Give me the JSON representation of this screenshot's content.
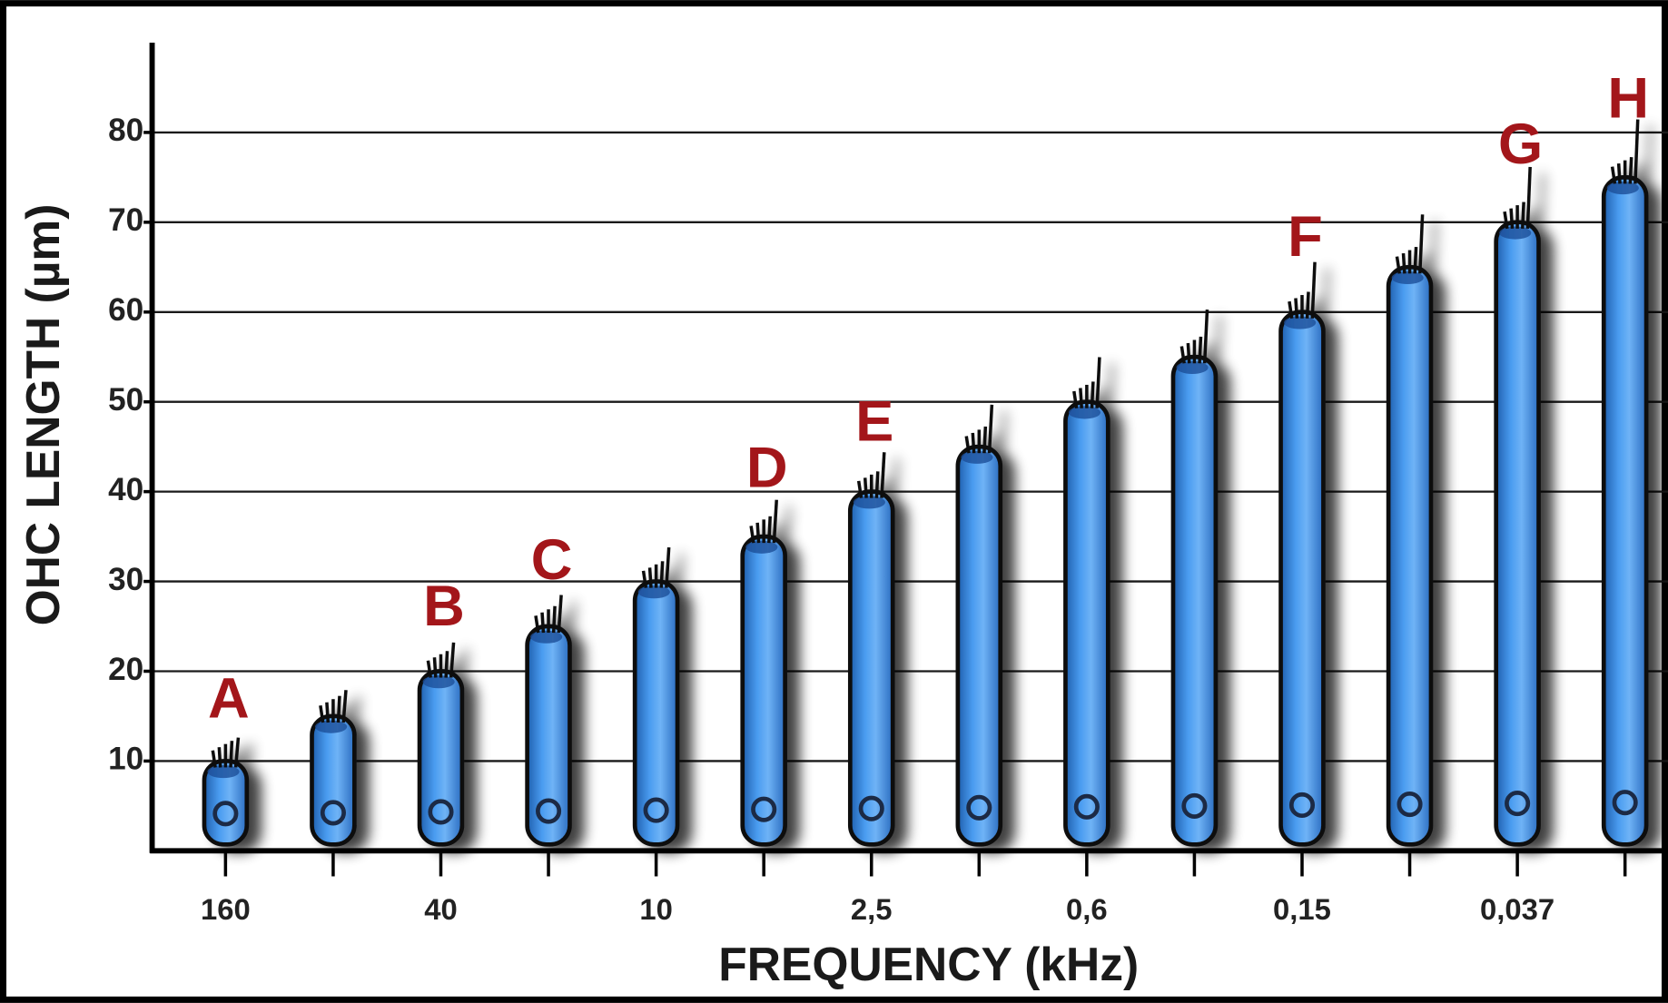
{
  "chart_data": {
    "type": "bar",
    "y_label": "OHC LENGTH (µm)",
    "x_label": "FREQUENCY (kHz)",
    "categories": [
      "160",
      null,
      "40",
      null,
      "10",
      null,
      "2,5",
      null,
      "0,6",
      null,
      "0,15",
      null,
      "0,037",
      null
    ],
    "values": [
      10,
      15,
      20,
      25,
      30,
      35,
      40,
      45,
      50,
      55,
      60,
      65,
      70,
      75
    ],
    "bar_labels": [
      "A",
      null,
      "B",
      "C",
      null,
      "D",
      "E",
      null,
      null,
      null,
      "F",
      null,
      "G",
      "H"
    ],
    "color": "#3a8ee0",
    "label_color": "#a3161a",
    "ylim": [
      0,
      90
    ],
    "yticks": [
      10,
      20,
      30,
      40,
      50,
      60,
      70,
      80
    ],
    "grid": true
  }
}
